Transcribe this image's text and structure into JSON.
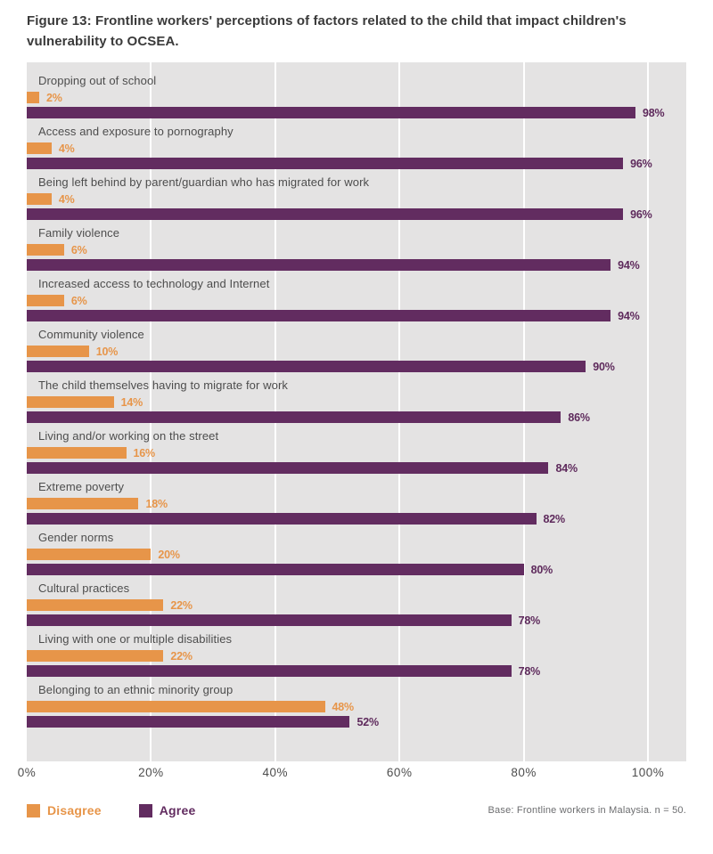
{
  "title": "Figure 13: Frontline workers' perceptions of factors related to the child that impact children's vulnerability to OCSEA.",
  "chart_data": {
    "type": "bar",
    "orientation": "horizontal",
    "title": "Figure 13: Frontline workers' perceptions of factors related to the child that impact children's vulnerability to OCSEA.",
    "categories": [
      "Dropping out of school",
      "Access and exposure to pornography",
      "Being left behind by parent/guardian who has migrated for work",
      "Family violence",
      "Increased access to technology and Internet",
      "Community violence",
      "The child themselves having to migrate for work",
      "Living and/or working on the street",
      "Extreme poverty",
      "Gender norms",
      "Cultural practices",
      "Living with one or multiple disabilities",
      "Belonging to an ethnic minority group"
    ],
    "series": [
      {
        "name": "Disagree",
        "color": "#e79549",
        "values": [
          2,
          4,
          4,
          6,
          6,
          10,
          14,
          16,
          18,
          20,
          22,
          22,
          48
        ]
      },
      {
        "name": "Agree",
        "color": "#622c60",
        "values": [
          98,
          96,
          96,
          94,
          94,
          90,
          86,
          84,
          82,
          80,
          78,
          78,
          52
        ]
      }
    ],
    "value_label_suffix": "%",
    "x_ticks": [
      "0%",
      "20%",
      "40%",
      "60%",
      "80%",
      "100%"
    ],
    "xlim": [
      0,
      100
    ],
    "grid": true,
    "gridline_percents": [
      20,
      40,
      60,
      80,
      100
    ],
    "plot_background": "#e4e3e3",
    "legend_position": "bottom-left"
  },
  "legend": {
    "items": [
      {
        "label": "Disagree",
        "color": "#e79549"
      },
      {
        "label": "Agree",
        "color": "#622c60"
      }
    ]
  },
  "footer": {
    "note": "Base: Frontline workers in Malaysia. n = 50."
  }
}
